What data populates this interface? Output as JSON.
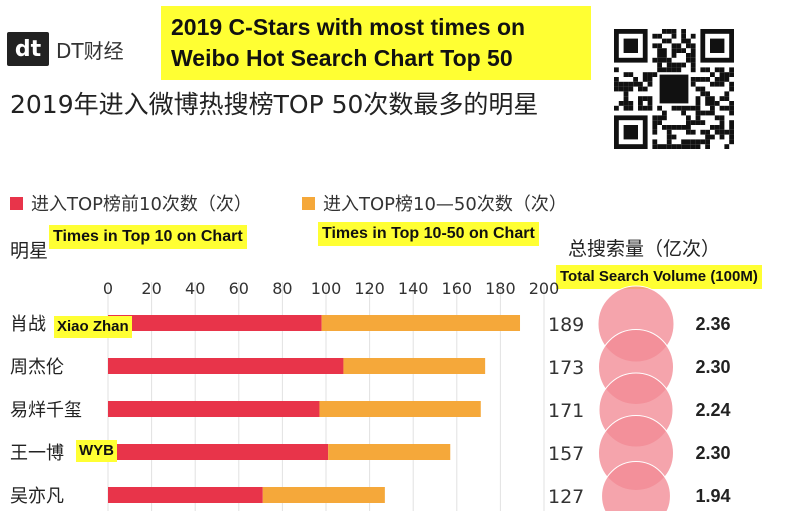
{
  "brand": {
    "logo_mark": "dt",
    "logo_text": "DT财经"
  },
  "english_title": "2019 C-Stars with most times on Weibo Hot Search Chart Top 50",
  "chinese_title": "2019年进入微博热搜榜TOP 50次数最多的明星",
  "legend": [
    {
      "label": "进入TOP榜前10次数（次）",
      "color": "#e8344a"
    },
    {
      "label": "进入TOP榜10—50次数（次）",
      "color": "#f5a83a"
    }
  ],
  "annotations": {
    "top10": "Times in Top 10 on Chart",
    "top10_50": "Times in Top 10-50 on Chart",
    "total_search": "Total Search Volume (100M)",
    "xiao_zhan": "Xiao Zhan",
    "wyb": "WYB"
  },
  "column_headers": {
    "star": "明星",
    "total_search": "总搜索量（亿次）"
  },
  "chart_data": {
    "type": "bar",
    "orientation": "horizontal",
    "stacked": true,
    "categories": [
      "肖战",
      "周杰伦",
      "易烊千玺",
      "王一博",
      "吴亦凡"
    ],
    "series": [
      {
        "name": "进入TOP榜前10次数（次）",
        "color": "#e8344a",
        "values": [
          98,
          108,
          97,
          101,
          71
        ]
      },
      {
        "name": "进入TOP榜10—50次数（次）",
        "color": "#f5a83a",
        "values": [
          91,
          65,
          74,
          56,
          56
        ]
      }
    ],
    "totals": [
      189,
      173,
      171,
      157,
      127
    ],
    "search_volume": [
      2.36,
      2.3,
      2.24,
      2.3,
      1.94
    ],
    "xlim": [
      0,
      200
    ],
    "xticks": [
      0,
      20,
      40,
      60,
      80,
      100,
      120,
      140,
      160,
      180,
      200
    ],
    "grid": true,
    "bubble_color": "#f28a95"
  }
}
